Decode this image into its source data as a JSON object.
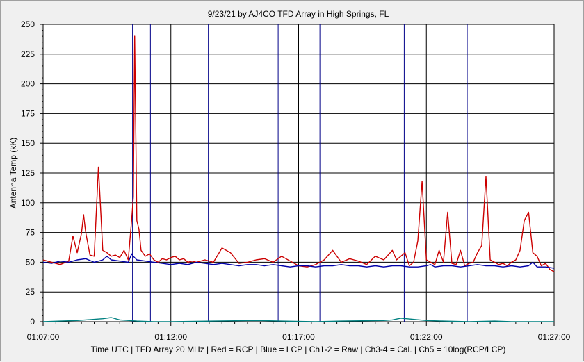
{
  "chart_data": {
    "type": "line",
    "title": "9/23/21  by  AJ4CO TFD Array  in  High Springs, FL",
    "ylabel": "Antenna Temp (kK)",
    "xlabel": "Time UTC | TFD Array 20 MHz | Red = RCP | Blue = LCP | Ch1-2 = Raw | Ch3-4 = Cal. | Ch5 = 10log(RCP/LCP)",
    "x_unit": "seconds since 01:07:00",
    "xlim": [
      0,
      1200
    ],
    "ylim": [
      0,
      250
    ],
    "y_ticks": [
      0,
      25,
      50,
      75,
      100,
      125,
      150,
      175,
      200,
      225,
      250
    ],
    "x_ticks": [
      {
        "value": 0,
        "label": "01:07:00"
      },
      {
        "value": 300,
        "label": "01:12:00"
      },
      {
        "value": 600,
        "label": "01:17:00"
      },
      {
        "value": 900,
        "label": "01:22:00"
      },
      {
        "value": 1200,
        "label": "01:27:00"
      }
    ],
    "grid": true,
    "series": [
      {
        "name": "RCP",
        "color": "#cc0000",
        "x": [
          0,
          20,
          40,
          60,
          70,
          80,
          90,
          95,
          100,
          110,
          120,
          130,
          140,
          150,
          160,
          170,
          180,
          190,
          200,
          208,
          212,
          215,
          220,
          225,
          230,
          240,
          250,
          260,
          270,
          280,
          290,
          300,
          310,
          320,
          330,
          340,
          350,
          360,
          380,
          400,
          420,
          440,
          460,
          480,
          500,
          520,
          540,
          560,
          580,
          600,
          620,
          640,
          660,
          680,
          700,
          720,
          740,
          760,
          780,
          800,
          820,
          830,
          840,
          850,
          860,
          870,
          880,
          890,
          900,
          910,
          920,
          930,
          940,
          950,
          960,
          970,
          980,
          990,
          1000,
          1010,
          1020,
          1030,
          1040,
          1050,
          1060,
          1070,
          1080,
          1090,
          1100,
          1110,
          1120,
          1130,
          1140,
          1150,
          1160,
          1170,
          1180,
          1190,
          1200
        ],
        "y": [
          52,
          50,
          48,
          51,
          72,
          58,
          74,
          90,
          75,
          56,
          55,
          130,
          60,
          58,
          55,
          56,
          54,
          60,
          52,
          86,
          105,
          240,
          85,
          78,
          60,
          55,
          57,
          52,
          50,
          53,
          52,
          54,
          55,
          52,
          53,
          50,
          51,
          50,
          52,
          50,
          62,
          58,
          49,
          50,
          52,
          53,
          50,
          55,
          51,
          47,
          46,
          48,
          52,
          60,
          50,
          53,
          51,
          48,
          55,
          52,
          60,
          52,
          55,
          58,
          47,
          50,
          68,
          118,
          52,
          50,
          48,
          60,
          50,
          92,
          49,
          48,
          60,
          47,
          49,
          50,
          58,
          64,
          122,
          52,
          50,
          48,
          49,
          47,
          50,
          52,
          60,
          85,
          92,
          58,
          55,
          47,
          49,
          44,
          42
        ]
      },
      {
        "name": "LCP",
        "color": "#0000aa",
        "x": [
          0,
          20,
          40,
          60,
          80,
          100,
          120,
          140,
          150,
          160,
          180,
          200,
          208,
          212,
          220,
          240,
          260,
          280,
          300,
          320,
          340,
          360,
          380,
          400,
          420,
          440,
          460,
          480,
          500,
          520,
          540,
          560,
          580,
          600,
          620,
          640,
          660,
          680,
          700,
          720,
          740,
          760,
          780,
          800,
          820,
          840,
          860,
          880,
          900,
          910,
          920,
          940,
          960,
          980,
          1000,
          1020,
          1040,
          1060,
          1080,
          1100,
          1120,
          1140,
          1150,
          1160,
          1180,
          1200
        ],
        "y": [
          50,
          49,
          51,
          50,
          52,
          53,
          50,
          52,
          55,
          52,
          51,
          50,
          57,
          55,
          52,
          51,
          50,
          49,
          48,
          49,
          48,
          50,
          49,
          48,
          49,
          48,
          47,
          48,
          48,
          47,
          48,
          47,
          46,
          47,
          47,
          46,
          47,
          47,
          48,
          47,
          47,
          46,
          47,
          46,
          47,
          47,
          46,
          46,
          47,
          48,
          46,
          47,
          47,
          46,
          47,
          48,
          47,
          47,
          46,
          47,
          46,
          47,
          50,
          46,
          46,
          45
        ]
      },
      {
        "name": "Ch5",
        "color": "#008080",
        "x": [
          0,
          40,
          80,
          100,
          140,
          160,
          180,
          220,
          260,
          300,
          400,
          500,
          560,
          640,
          700,
          800,
          820,
          840,
          900,
          940,
          1000,
          1060,
          1100,
          1200
        ],
        "y": [
          0,
          0.5,
          1,
          1.5,
          2.5,
          3.5,
          1.5,
          0.5,
          0,
          0,
          0.5,
          1,
          0.5,
          0,
          0.5,
          1,
          1.5,
          3,
          1,
          0.5,
          0,
          0.5,
          0,
          0
        ]
      }
    ],
    "markers": {
      "color": "#000088",
      "x": [
        210,
        252,
        388,
        552,
        650,
        848,
        996
      ]
    }
  }
}
